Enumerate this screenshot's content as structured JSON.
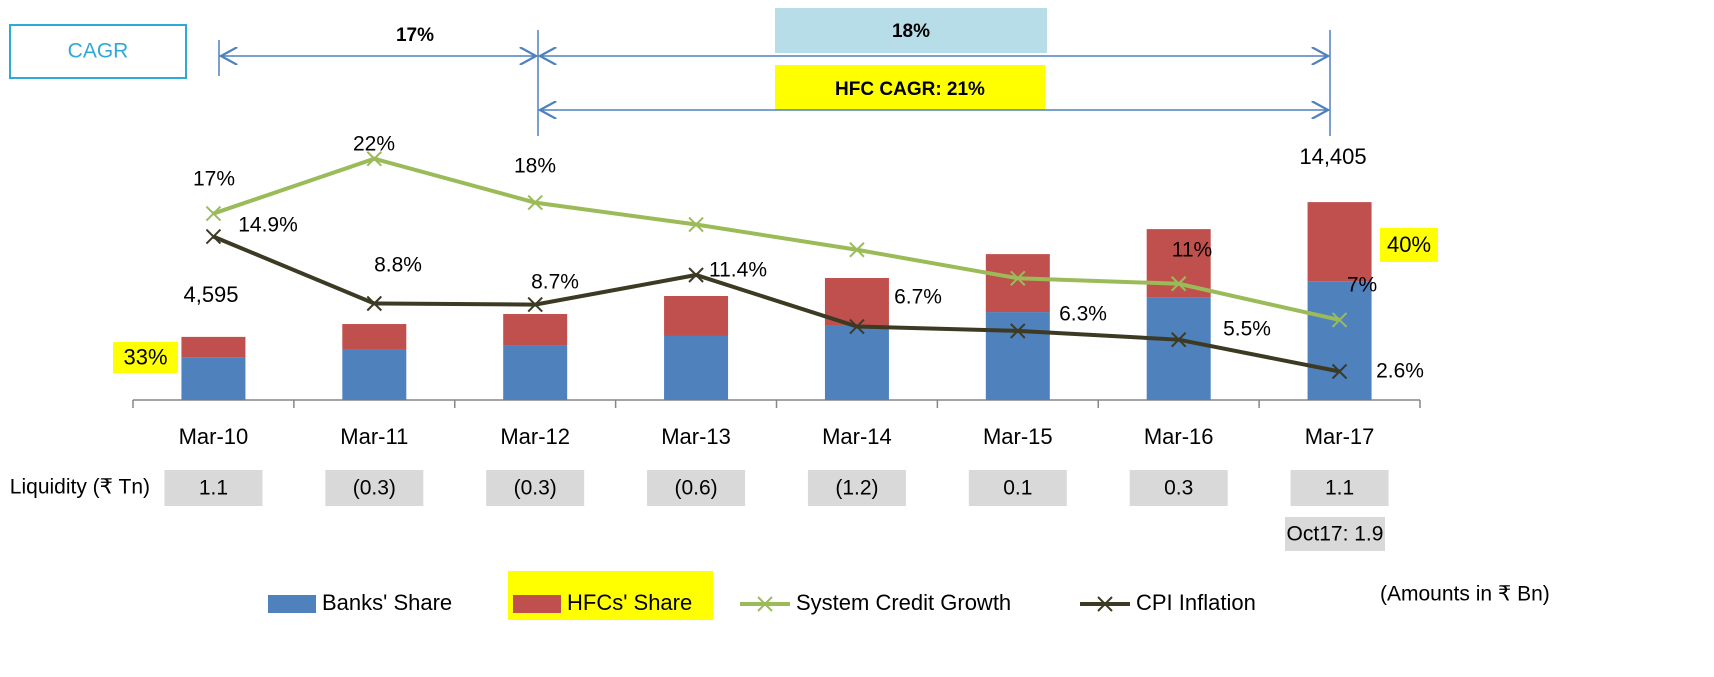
{
  "chart_data": {
    "type": "bar",
    "stacked": true,
    "categories": [
      "Mar-10",
      "Mar-11",
      "Mar-12",
      "Mar-13",
      "Mar-14",
      "Mar-15",
      "Mar-16",
      "Mar-17"
    ],
    "ylim": [
      0,
      19000
    ],
    "y2lim": [
      0,
      23.8
    ],
    "series": [
      {
        "name": "Banks' Share",
        "type": "bar",
        "color": "#4f81bd",
        "values": [
          3080,
          3710,
          4000,
          4660,
          5460,
          6400,
          7490,
          8640
        ]
      },
      {
        "name": "HFCs' Share",
        "type": "bar",
        "color": "#c0504d",
        "values": [
          1515,
          1820,
          2260,
          2910,
          3420,
          4220,
          4950,
          5765
        ]
      },
      {
        "name": "System Credit Growth",
        "type": "line",
        "axis": "y2",
        "color": "#9bbb59",
        "values": [
          17,
          22,
          18,
          16,
          13.7,
          11.1,
          10.6,
          7.3
        ],
        "value_labels": [
          "17%",
          "22%",
          "18%",
          null,
          null,
          null,
          "11%",
          "7%"
        ]
      },
      {
        "name": "CPI Inflation",
        "type": "line",
        "axis": "y2",
        "color": "#3d3a24",
        "values": [
          14.9,
          8.8,
          8.7,
          11.4,
          6.7,
          6.3,
          5.5,
          2.6
        ],
        "value_labels": [
          "14.9%",
          "8.8%",
          "8.7%",
          "11.4%",
          "6.7%",
          "6.3%",
          "5.5%",
          "2.6%"
        ]
      }
    ],
    "total_labels": [
      "4,595",
      null,
      null,
      null,
      null,
      null,
      null,
      "14,405"
    ],
    "hfc_share_labels": [
      "33%",
      null,
      null,
      null,
      null,
      null,
      null,
      "40%"
    ],
    "cagr": {
      "label": "CAGR",
      "first": "17%",
      "second": "18%",
      "hfc": "HFC CAGR: 21%"
    },
    "liquidity": {
      "label": "Liquidity (₹ Tn)",
      "values": [
        "1.1",
        "(0.3)",
        "(0.3)",
        "(0.6)",
        "(1.2)",
        "0.1",
        "0.3",
        "1.1"
      ],
      "note": "Oct17: 1.9"
    },
    "footnote": "(Amounts in ₹ Bn)"
  }
}
